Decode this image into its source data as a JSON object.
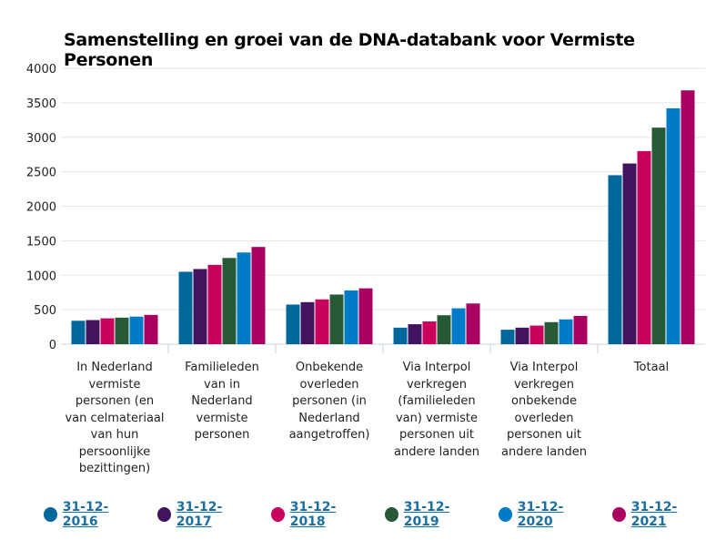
{
  "chart_data": {
    "type": "bar",
    "title": "Samenstelling en groei van de DNA-databank voor Vermiste Personen",
    "xlabel": "",
    "ylabel": "",
    "ylim": [
      0,
      4000
    ],
    "yticks": [
      0,
      500,
      1000,
      1500,
      2000,
      2500,
      3000,
      3500,
      4000
    ],
    "grid": true,
    "legend_position": "bottom",
    "categories": [
      "In Nederland vermiste personen (en van celmateriaal van hun persoonlijke bezittingen)",
      "Familieleden van in Nederland vermiste personen",
      "Onbekende overleden personen (in Nederland aangetroffen)",
      "Via Interpol verkregen (familieleden van) vermiste personen uit andere landen",
      "Via Interpol verkregen onbekende overleden personen uit andere landen",
      "Totaal"
    ],
    "category_lines": [
      [
        "In Nederland",
        "vermiste",
        "personen (en",
        "van celmateriaal",
        "van hun",
        "persoonlijke",
        "bezittingen)"
      ],
      [
        "Familieleden",
        "van in",
        "Nederland",
        "vermiste",
        "personen"
      ],
      [
        "Onbekende",
        "overleden",
        "personen (in",
        "Nederland",
        "aangetroffen)"
      ],
      [
        "Via Interpol",
        "verkregen",
        "(familieleden",
        "van) vermiste",
        "personen uit",
        "andere landen"
      ],
      [
        "Via Interpol",
        "verkregen",
        "onbekende",
        "overleden",
        "personen uit",
        "andere landen"
      ],
      [
        "Totaal"
      ]
    ],
    "series": [
      {
        "name": "31-12-2016",
        "color": "#01689b",
        "values": [
          340,
          1050,
          575,
          240,
          210,
          2450
        ]
      },
      {
        "name": "31-12-2017",
        "color": "#42145f",
        "values": [
          350,
          1090,
          610,
          290,
          240,
          2620
        ]
      },
      {
        "name": "31-12-2018",
        "color": "#ca005d",
        "values": [
          375,
          1150,
          650,
          330,
          270,
          2800
        ]
      },
      {
        "name": "31-12-2019",
        "color": "#275937",
        "values": [
          385,
          1250,
          720,
          420,
          320,
          3140
        ]
      },
      {
        "name": "31-12-2020",
        "color": "#007bc7",
        "values": [
          400,
          1330,
          780,
          520,
          360,
          3420
        ]
      },
      {
        "name": "31-12-2021",
        "color": "#a90061",
        "values": [
          425,
          1410,
          810,
          590,
          410,
          3680
        ]
      }
    ]
  }
}
